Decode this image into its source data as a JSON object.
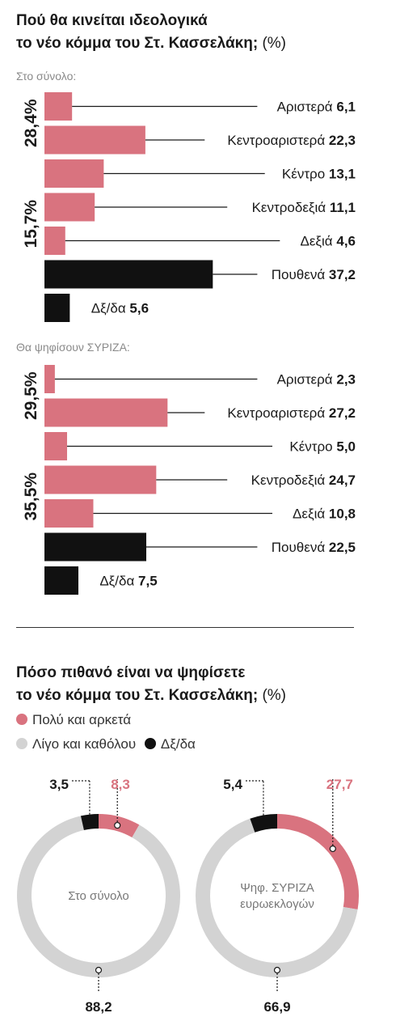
{
  "title1": {
    "bold": "Πού θα κινείται ιδεολογικά",
    "bold2": "το νέο κόμμα του Στ. Κασσελάκη;",
    "unit": "(%)"
  },
  "title2": {
    "bold": "Πόσο πιθανό είναι να ψηφίσετε",
    "bold2": "το νέο κόμμα του Στ. Κασσελάκη;",
    "unit": "(%)"
  },
  "legend": {
    "items": [
      {
        "label": "Πολύ και αρκετά",
        "color": "#d9737f"
      },
      {
        "label": "Λίγο και καθόλου",
        "color": "#d3d3d3"
      },
      {
        "label": "Δξ/δα",
        "color": "#111111"
      }
    ]
  },
  "chart_data": [
    {
      "type": "bar",
      "title": "Στο σύνολο:",
      "categories": [
        "Αριστερά",
        "Κεντροαριστερά",
        "Κέντρο",
        "Κεντροδεξιά",
        "Δεξιά",
        "Πουθενά",
        "Δξ/δα"
      ],
      "values": [
        6.1,
        22.3,
        13.1,
        11.1,
        4.6,
        37.2,
        5.6
      ],
      "value_labels": [
        "6,1",
        "22,3",
        "13,1",
        "11,1",
        "4,6",
        "37,2",
        "5,6"
      ],
      "bar_colors": [
        "#d9737f",
        "#d9737f",
        "#d9737f",
        "#d9737f",
        "#d9737f",
        "#111111",
        "#111111"
      ],
      "groups": [
        {
          "label": "28,4%",
          "rows": [
            0,
            1
          ]
        },
        {
          "label": "15,7%",
          "rows": [
            3,
            4
          ]
        }
      ]
    },
    {
      "type": "bar",
      "title": "Θα ψηφίσουν ΣΥΡΙΖΑ:",
      "categories": [
        "Αριστερά",
        "Κεντροαριστερά",
        "Κέντρο",
        "Κεντροδεξιά",
        "Δεξιά",
        "Πουθενά",
        "Δξ/δα"
      ],
      "values": [
        2.3,
        27.2,
        5.0,
        24.7,
        10.8,
        22.5,
        7.5
      ],
      "value_labels": [
        "2,3",
        "27,2",
        "5,0",
        "24,7",
        "10,8",
        "22,5",
        "7,5"
      ],
      "bar_colors": [
        "#d9737f",
        "#d9737f",
        "#d9737f",
        "#d9737f",
        "#d9737f",
        "#111111",
        "#111111"
      ],
      "groups": [
        {
          "label": "29,5%",
          "rows": [
            0,
            1
          ]
        },
        {
          "label": "35,5%",
          "rows": [
            3,
            4
          ]
        }
      ]
    },
    {
      "type": "pie",
      "title": "Στο σύνολο",
      "categories": [
        "Πολύ και αρκετά",
        "Λίγο και καθόλου",
        "Δξ/δα"
      ],
      "values": [
        8.3,
        88.2,
        3.5
      ],
      "value_labels": [
        "8,3",
        "88,2",
        "3,5"
      ],
      "colors": [
        "#d9737f",
        "#d3d3d3",
        "#111111"
      ]
    },
    {
      "type": "pie",
      "title": "Ψηφ. ΣΥΡΙΖΑ ευρωεκλογών",
      "title_lines": [
        "Ψηφ. ΣΥΡΙΖΑ",
        "ευρωεκλογών"
      ],
      "categories": [
        "Πολύ και αρκετά",
        "Λίγο και καθόλου",
        "Δξ/δα"
      ],
      "values": [
        27.7,
        66.9,
        5.4
      ],
      "value_labels": [
        "27,7",
        "66,9",
        "5,4"
      ],
      "colors": [
        "#d9737f",
        "#d3d3d3",
        "#111111"
      ]
    }
  ]
}
